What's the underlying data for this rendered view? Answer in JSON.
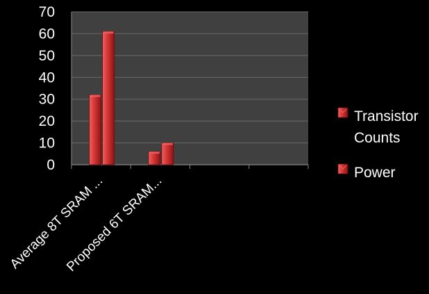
{
  "chart_data": {
    "type": "bar",
    "categories": [
      "Average 8T SRAM ...",
      "Proposed 6T SRAM..."
    ],
    "series": [
      {
        "name": "Transistor Counts",
        "values": [
          32,
          6
        ]
      },
      {
        "name": "Power",
        "values": [
          61,
          10
        ]
      }
    ],
    "legend": {
      "position": "right",
      "entries": [
        {
          "lines": [
            "Transistor",
            "Counts"
          ]
        },
        {
          "lines": [
            "Power"
          ]
        }
      ]
    },
    "y_ticks": [
      "0",
      "10",
      "20",
      "30",
      "40",
      "50",
      "60",
      "70"
    ],
    "ylim": [
      0,
      70
    ],
    "grid": true,
    "colors": {
      "background": "#000000",
      "plot_area": "#404040",
      "gridline": "#6a6a6a",
      "axis": "#888888",
      "bar_light": "#ef6262",
      "bar_main": "#d23434",
      "bar_dark": "#8c1414"
    }
  }
}
